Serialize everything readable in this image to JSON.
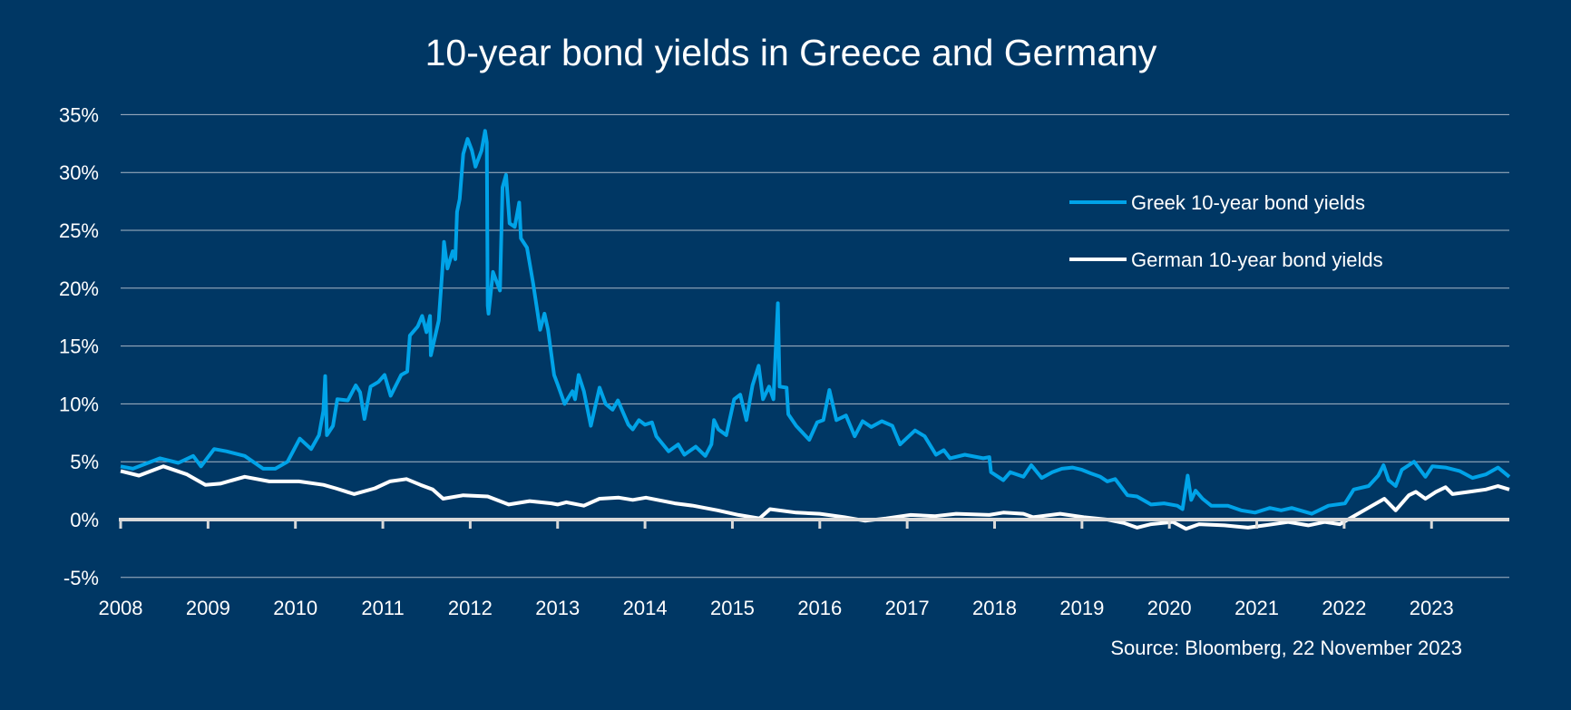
{
  "chart_data": {
    "type": "line",
    "title": "10-year bond yields in Greece and Germany",
    "xlabel": "",
    "ylabel": "",
    "xlim": [
      2008,
      2023.89
    ],
    "ylim": [
      -5,
      35
    ],
    "x_ticks": [
      "2008",
      "2009",
      "2010",
      "2011",
      "2012",
      "2013",
      "2014",
      "2015",
      "2016",
      "2017",
      "2018",
      "2019",
      "2020",
      "2021",
      "2022",
      "2023"
    ],
    "y_ticks": [
      "35%",
      "30%",
      "25%",
      "20%",
      "15%",
      "10%",
      "5%",
      "0%",
      "-5%"
    ],
    "y_tick_values": [
      35,
      30,
      25,
      20,
      15,
      10,
      5,
      0,
      -5
    ],
    "grid": true,
    "legend_position": "top-right",
    "source": "Source: Bloomberg, 22 November 2023",
    "series": [
      {
        "name": "Greek 10-year bond yields",
        "color": "#00a3e8",
        "points": [
          [
            2008.0,
            4.6
          ],
          [
            2008.14,
            4.4
          ],
          [
            2008.45,
            5.3
          ],
          [
            2008.66,
            4.9
          ],
          [
            2008.83,
            5.5
          ],
          [
            2008.92,
            4.6
          ],
          [
            2009.07,
            6.1
          ],
          [
            2009.21,
            5.9
          ],
          [
            2009.42,
            5.5
          ],
          [
            2009.63,
            4.4
          ],
          [
            2009.77,
            4.4
          ],
          [
            2009.91,
            5.0
          ],
          [
            2010.05,
            7.0
          ],
          [
            2010.18,
            6.1
          ],
          [
            2010.27,
            7.3
          ],
          [
            2010.32,
            9.4
          ],
          [
            2010.34,
            12.4
          ],
          [
            2010.36,
            7.3
          ],
          [
            2010.43,
            8.1
          ],
          [
            2010.48,
            10.4
          ],
          [
            2010.6,
            10.3
          ],
          [
            2010.69,
            11.6
          ],
          [
            2010.74,
            11.0
          ],
          [
            2010.79,
            8.7
          ],
          [
            2010.86,
            11.5
          ],
          [
            2010.95,
            11.9
          ],
          [
            2011.02,
            12.5
          ],
          [
            2011.09,
            10.7
          ],
          [
            2011.21,
            12.5
          ],
          [
            2011.28,
            12.8
          ],
          [
            2011.31,
            15.9
          ],
          [
            2011.4,
            16.7
          ],
          [
            2011.45,
            17.6
          ],
          [
            2011.5,
            16.2
          ],
          [
            2011.54,
            17.6
          ],
          [
            2011.55,
            14.2
          ],
          [
            2011.64,
            17.2
          ],
          [
            2011.69,
            22.5
          ],
          [
            2011.7,
            24.0
          ],
          [
            2011.74,
            21.7
          ],
          [
            2011.8,
            23.2
          ],
          [
            2011.83,
            22.5
          ],
          [
            2011.85,
            26.6
          ],
          [
            2011.88,
            27.7
          ],
          [
            2011.92,
            31.6
          ],
          [
            2011.97,
            32.9
          ],
          [
            2012.02,
            31.9
          ],
          [
            2012.06,
            30.5
          ],
          [
            2012.13,
            31.9
          ],
          [
            2012.17,
            33.6
          ],
          [
            2012.19,
            32.6
          ],
          [
            2012.2,
            18.5
          ],
          [
            2012.21,
            17.8
          ],
          [
            2012.26,
            21.4
          ],
          [
            2012.34,
            19.8
          ],
          [
            2012.37,
            28.7
          ],
          [
            2012.41,
            29.8
          ],
          [
            2012.45,
            25.6
          ],
          [
            2012.51,
            25.3
          ],
          [
            2012.56,
            27.4
          ],
          [
            2012.58,
            24.3
          ],
          [
            2012.65,
            23.5
          ],
          [
            2012.72,
            20.4
          ],
          [
            2012.8,
            16.4
          ],
          [
            2012.85,
            17.8
          ],
          [
            2012.89,
            16.4
          ],
          [
            2012.96,
            12.5
          ],
          [
            2013.0,
            11.7
          ],
          [
            2013.08,
            10.0
          ],
          [
            2013.17,
            11.1
          ],
          [
            2013.2,
            10.4
          ],
          [
            2013.24,
            12.5
          ],
          [
            2013.3,
            11.1
          ],
          [
            2013.38,
            8.1
          ],
          [
            2013.48,
            11.4
          ],
          [
            2013.55,
            10.0
          ],
          [
            2013.63,
            9.5
          ],
          [
            2013.69,
            10.3
          ],
          [
            2013.81,
            8.2
          ],
          [
            2013.86,
            7.8
          ],
          [
            2013.93,
            8.6
          ],
          [
            2014.0,
            8.2
          ],
          [
            2014.08,
            8.4
          ],
          [
            2014.13,
            7.2
          ],
          [
            2014.27,
            5.9
          ],
          [
            2014.38,
            6.5
          ],
          [
            2014.45,
            5.6
          ],
          [
            2014.58,
            6.3
          ],
          [
            2014.69,
            5.5
          ],
          [
            2014.76,
            6.5
          ],
          [
            2014.79,
            8.6
          ],
          [
            2014.84,
            7.8
          ],
          [
            2014.93,
            7.3
          ],
          [
            2015.02,
            10.4
          ],
          [
            2015.09,
            10.8
          ],
          [
            2015.16,
            8.6
          ],
          [
            2015.23,
            11.6
          ],
          [
            2015.3,
            13.3
          ],
          [
            2015.35,
            10.4
          ],
          [
            2015.42,
            11.5
          ],
          [
            2015.47,
            10.4
          ],
          [
            2015.52,
            18.7
          ],
          [
            2015.54,
            11.5
          ],
          [
            2015.62,
            11.4
          ],
          [
            2015.64,
            9.1
          ],
          [
            2015.73,
            8.1
          ],
          [
            2015.88,
            6.9
          ],
          [
            2015.97,
            8.4
          ],
          [
            2016.04,
            8.6
          ],
          [
            2016.11,
            11.2
          ],
          [
            2016.19,
            8.6
          ],
          [
            2016.3,
            9.0
          ],
          [
            2016.4,
            7.2
          ],
          [
            2016.49,
            8.5
          ],
          [
            2016.59,
            8.0
          ],
          [
            2016.71,
            8.5
          ],
          [
            2016.83,
            8.1
          ],
          [
            2016.92,
            6.5
          ],
          [
            2017.09,
            7.7
          ],
          [
            2017.2,
            7.2
          ],
          [
            2017.33,
            5.6
          ],
          [
            2017.42,
            6.0
          ],
          [
            2017.49,
            5.3
          ],
          [
            2017.66,
            5.6
          ],
          [
            2017.87,
            5.3
          ],
          [
            2017.94,
            5.4
          ],
          [
            2017.96,
            4.1
          ],
          [
            2018.1,
            3.4
          ],
          [
            2018.18,
            4.1
          ],
          [
            2018.33,
            3.7
          ],
          [
            2018.42,
            4.7
          ],
          [
            2018.54,
            3.6
          ],
          [
            2018.66,
            4.1
          ],
          [
            2018.77,
            4.4
          ],
          [
            2018.89,
            4.5
          ],
          [
            2019.0,
            4.3
          ],
          [
            2019.1,
            4.0
          ],
          [
            2019.21,
            3.7
          ],
          [
            2019.29,
            3.3
          ],
          [
            2019.38,
            3.5
          ],
          [
            2019.52,
            2.1
          ],
          [
            2019.63,
            2.0
          ],
          [
            2019.79,
            1.3
          ],
          [
            2019.94,
            1.4
          ],
          [
            2020.09,
            1.2
          ],
          [
            2020.15,
            0.9
          ],
          [
            2020.21,
            3.8
          ],
          [
            2020.25,
            1.7
          ],
          [
            2020.3,
            2.5
          ],
          [
            2020.38,
            1.8
          ],
          [
            2020.48,
            1.2
          ],
          [
            2020.67,
            1.2
          ],
          [
            2020.82,
            0.8
          ],
          [
            2020.98,
            0.6
          ],
          [
            2021.15,
            1.0
          ],
          [
            2021.28,
            0.8
          ],
          [
            2021.4,
            1.0
          ],
          [
            2021.63,
            0.5
          ],
          [
            2021.82,
            1.2
          ],
          [
            2022.01,
            1.4
          ],
          [
            2022.11,
            2.6
          ],
          [
            2022.28,
            2.9
          ],
          [
            2022.39,
            3.8
          ],
          [
            2022.45,
            4.7
          ],
          [
            2022.51,
            3.4
          ],
          [
            2022.59,
            2.9
          ],
          [
            2022.66,
            4.3
          ],
          [
            2022.8,
            5.0
          ],
          [
            2022.93,
            3.7
          ],
          [
            2023.01,
            4.6
          ],
          [
            2023.16,
            4.5
          ],
          [
            2023.32,
            4.2
          ],
          [
            2023.47,
            3.6
          ],
          [
            2023.62,
            3.9
          ],
          [
            2023.76,
            4.5
          ],
          [
            2023.89,
            3.7
          ]
        ]
      },
      {
        "name": "German 10-year bond yields",
        "color": "#ffffff",
        "points": [
          [
            2008.0,
            4.2
          ],
          [
            2008.21,
            3.8
          ],
          [
            2008.49,
            4.6
          ],
          [
            2008.76,
            3.9
          ],
          [
            2008.97,
            3.0
          ],
          [
            2009.14,
            3.1
          ],
          [
            2009.42,
            3.7
          ],
          [
            2009.7,
            3.3
          ],
          [
            2010.04,
            3.3
          ],
          [
            2010.32,
            3.0
          ],
          [
            2010.46,
            2.7
          ],
          [
            2010.67,
            2.2
          ],
          [
            2010.91,
            2.7
          ],
          [
            2011.08,
            3.3
          ],
          [
            2011.27,
            3.5
          ],
          [
            2011.43,
            3.0
          ],
          [
            2011.57,
            2.6
          ],
          [
            2011.69,
            1.8
          ],
          [
            2011.92,
            2.1
          ],
          [
            2012.2,
            2.0
          ],
          [
            2012.44,
            1.3
          ],
          [
            2012.68,
            1.6
          ],
          [
            2012.93,
            1.4
          ],
          [
            2013.0,
            1.3
          ],
          [
            2013.1,
            1.5
          ],
          [
            2013.3,
            1.2
          ],
          [
            2013.48,
            1.8
          ],
          [
            2013.7,
            1.9
          ],
          [
            2013.86,
            1.7
          ],
          [
            2014.01,
            1.9
          ],
          [
            2014.34,
            1.4
          ],
          [
            2014.55,
            1.2
          ],
          [
            2014.83,
            0.8
          ],
          [
            2015.07,
            0.4
          ],
          [
            2015.31,
            0.1
          ],
          [
            2015.43,
            0.9
          ],
          [
            2015.73,
            0.6
          ],
          [
            2016.0,
            0.5
          ],
          [
            2016.28,
            0.2
          ],
          [
            2016.52,
            -0.1
          ],
          [
            2016.76,
            0.1
          ],
          [
            2017.04,
            0.4
          ],
          [
            2017.32,
            0.3
          ],
          [
            2017.56,
            0.5
          ],
          [
            2017.94,
            0.4
          ],
          [
            2018.1,
            0.6
          ],
          [
            2018.33,
            0.5
          ],
          [
            2018.44,
            0.2
          ],
          [
            2018.75,
            0.5
          ],
          [
            2019.02,
            0.2
          ],
          [
            2019.29,
            0.0
          ],
          [
            2019.48,
            -0.3
          ],
          [
            2019.63,
            -0.7
          ],
          [
            2019.79,
            -0.4
          ],
          [
            2020.04,
            -0.2
          ],
          [
            2020.19,
            -0.8
          ],
          [
            2020.34,
            -0.4
          ],
          [
            2020.63,
            -0.5
          ],
          [
            2020.9,
            -0.7
          ],
          [
            2021.09,
            -0.5
          ],
          [
            2021.36,
            -0.2
          ],
          [
            2021.59,
            -0.5
          ],
          [
            2021.78,
            -0.2
          ],
          [
            2021.95,
            -0.4
          ],
          [
            2022.09,
            0.2
          ],
          [
            2022.32,
            1.2
          ],
          [
            2022.46,
            1.8
          ],
          [
            2022.59,
            0.8
          ],
          [
            2022.74,
            2.1
          ],
          [
            2022.82,
            2.4
          ],
          [
            2022.93,
            1.8
          ],
          [
            2023.05,
            2.4
          ],
          [
            2023.16,
            2.8
          ],
          [
            2023.24,
            2.2
          ],
          [
            2023.43,
            2.4
          ],
          [
            2023.62,
            2.6
          ],
          [
            2023.76,
            2.9
          ],
          [
            2023.89,
            2.6
          ]
        ]
      }
    ]
  }
}
